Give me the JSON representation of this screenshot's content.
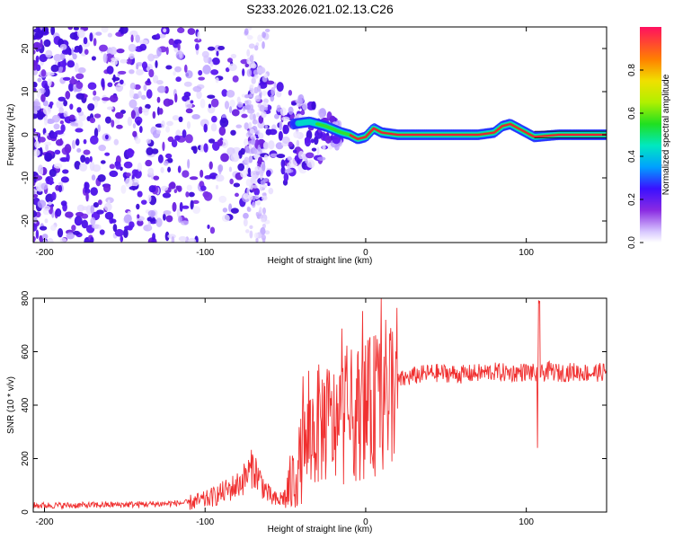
{
  "title": "S233.2026.021.02.13.C26",
  "colors": {
    "snr_line": "#f03030",
    "signal_core": "#e8203a",
    "scatter_main": "#5a18f0",
    "scatter_light": "#d8c8ff"
  },
  "chart_data": [
    {
      "type": "heatmap",
      "name": "spectrogram",
      "xlabel": "Height of straight line (km)",
      "ylabel": "Frequency (Hz)",
      "xlim": [
        -207,
        150
      ],
      "ylim": [
        -25,
        25
      ],
      "xticks": [
        -200,
        -100,
        0,
        100
      ],
      "yticks": [
        -20,
        -10,
        0,
        10,
        20
      ],
      "colorbar": {
        "label": "Normalized spectral amplitude",
        "range": [
          0,
          1
        ],
        "ticks": [
          0.0,
          0.2,
          0.4,
          0.6,
          0.8
        ],
        "tick_labels": [
          "0.0",
          "0.2",
          "0.4",
          "0.6",
          "0.8"
        ]
      },
      "signal_track": {
        "x": [
          -45,
          -35,
          -25,
          -15,
          -10,
          -5,
          0,
          5,
          10,
          20,
          40,
          60,
          70,
          80,
          85,
          90,
          95,
          100,
          105,
          120,
          150
        ],
        "freq": [
          2.5,
          3,
          2,
          0.5,
          0,
          -1,
          -0.5,
          1.5,
          0.5,
          0,
          0,
          0,
          0,
          0.5,
          2,
          2.5,
          1.5,
          0.5,
          -0.5,
          0,
          0
        ]
      }
    },
    {
      "type": "line",
      "name": "snr",
      "xlabel": "Height of straight line (km)",
      "ylabel": "SNR (10 * v/v)",
      "xlim": [
        -207,
        150
      ],
      "ylim": [
        0,
        800
      ],
      "xticks": [
        -200,
        -100,
        0,
        100
      ],
      "yticks": [
        0,
        200,
        400,
        600,
        800
      ],
      "series": [
        {
          "name": "SNR",
          "x": [
            -207,
            -180,
            -150,
            -130,
            -110,
            -100,
            -90,
            -80,
            -75,
            -70,
            -65,
            -60,
            -55,
            -50,
            -45,
            -40,
            -35,
            -30,
            -25,
            -20,
            -15,
            -10,
            -5,
            0,
            5,
            10,
            15,
            20,
            30,
            40,
            50,
            60,
            70,
            80,
            90,
            100,
            105,
            108,
            110,
            115,
            120,
            130,
            140,
            150
          ],
          "y": [
            25,
            25,
            28,
            30,
            35,
            45,
            70,
            100,
            130,
            170,
            110,
            60,
            40,
            60,
            120,
            200,
            280,
            320,
            340,
            320,
            340,
            360,
            370,
            380,
            400,
            420,
            460,
            490,
            510,
            520,
            520,
            515,
            520,
            525,
            520,
            525,
            520,
            500,
            520,
            530,
            520,
            525,
            520,
            525
          ]
        }
      ],
      "annotations": [
        {
          "x": 108,
          "y": 800,
          "label": "spike"
        },
        {
          "x": 107,
          "y": 240,
          "label": "dip"
        }
      ]
    }
  ]
}
